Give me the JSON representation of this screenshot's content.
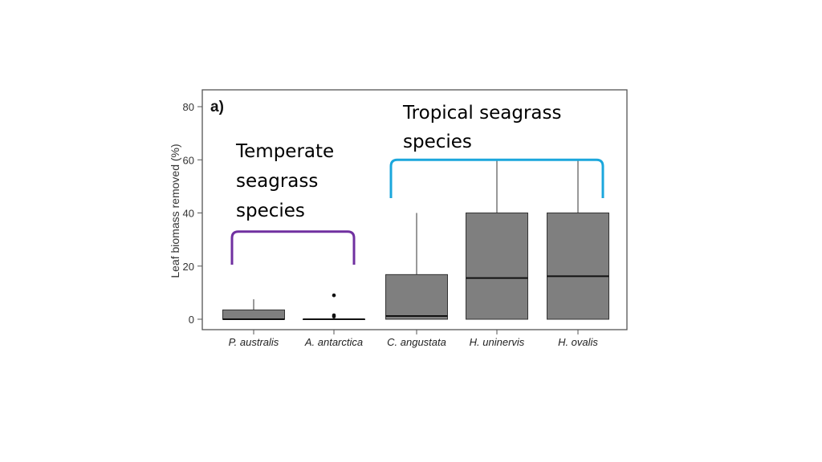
{
  "chart_data": {
    "type": "boxplot",
    "panel_label": "a)",
    "xlabel": "",
    "ylabel": "Leaf biomass removed (%)",
    "ylim": [
      0,
      85
    ],
    "yticks": [
      0,
      20,
      40,
      60,
      80
    ],
    "grid": false,
    "categories": [
      "P. australis",
      "A. antarctica",
      "C. angustata",
      "H. uninervis",
      "H. ovalis"
    ],
    "boxes": [
      {
        "q1": 0,
        "median": 0,
        "q3": 3.5,
        "whisker_low": 0,
        "whisker_high": 7.5,
        "outliers": []
      },
      {
        "q1": 0,
        "median": 0,
        "q3": 0,
        "whisker_low": 0,
        "whisker_high": 0,
        "outliers": [
          1,
          1.5,
          9
        ]
      },
      {
        "q1": 0,
        "median": 1.2,
        "q3": 16.8,
        "whisker_low": 0,
        "whisker_high": 40,
        "outliers": []
      },
      {
        "q1": 0,
        "median": 15.5,
        "q3": 40,
        "whisker_low": 0,
        "whisker_high": 60,
        "outliers": []
      },
      {
        "q1": 0,
        "median": 16.2,
        "q3": 40,
        "whisker_low": 0,
        "whisker_high": 60,
        "outliers": []
      }
    ],
    "box_color": "#7f7f7f",
    "annotations": [
      {
        "text": [
          "Temperate",
          "seagrass",
          "species"
        ],
        "color": "#7030a0",
        "spans": [
          "P. australis",
          "A. antarctica"
        ],
        "bracket_level": 33
      },
      {
        "text": [
          "Tropical seagrass",
          "species"
        ],
        "color": "#1ba7dc",
        "spans": [
          "C. angustata",
          "H. ovalis"
        ],
        "bracket_level": 60
      }
    ]
  }
}
